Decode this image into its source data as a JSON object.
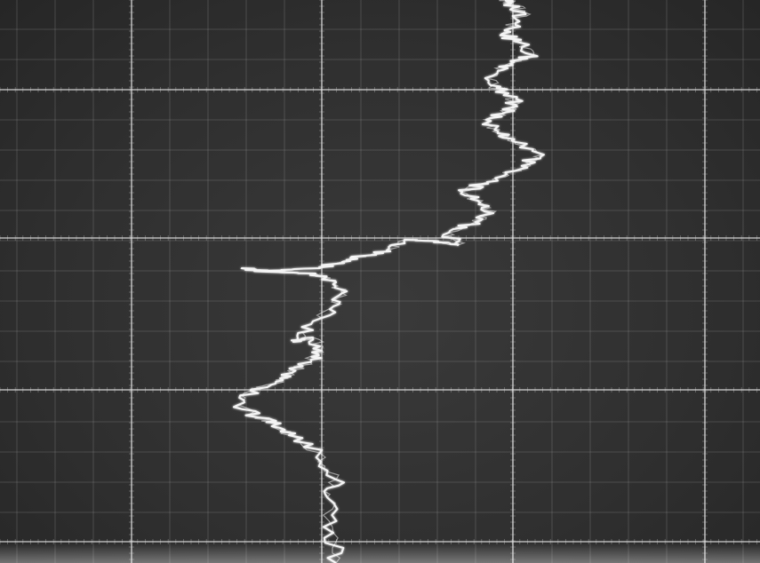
{
  "scene": {
    "subject": "oscilloscope-trace-photo",
    "background_color": "#2f2f2f",
    "grid_major_color": "#e6e6e6",
    "grid_minor_color": "#bdbdbd",
    "trace_color": "#f4f4f4"
  }
}
